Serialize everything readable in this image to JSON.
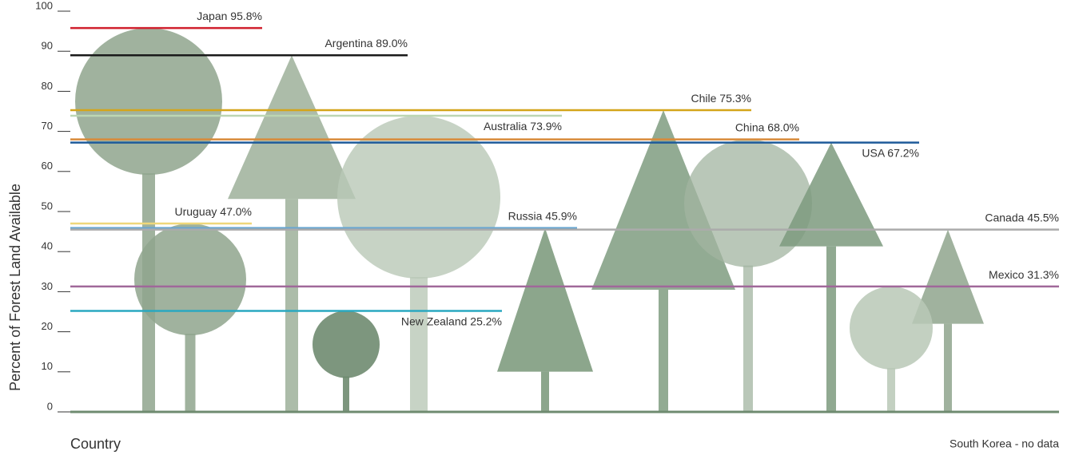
{
  "chart_data": {
    "type": "line-markers",
    "x_label": "Country",
    "y_label": "Percent of Forest Land Available",
    "note": "South Korea - no data",
    "ylim": [
      0,
      100
    ],
    "yticks": [
      0,
      10,
      20,
      30,
      40,
      50,
      60,
      70,
      80,
      90,
      100
    ],
    "series": [
      {
        "name": "Japan",
        "color": "#d0202e",
        "values": [
          95.8
        ],
        "value_labels": [
          "95.8%"
        ]
      },
      {
        "name": "Argentina",
        "color": "#1a1a1a",
        "values": [
          89.0
        ],
        "value_labels": [
          "89.0%"
        ]
      },
      {
        "name": "Chile",
        "color": "#d4a51a",
        "values": [
          75.3
        ],
        "value_labels": [
          "75.3%"
        ]
      },
      {
        "name": "Australia",
        "color": "#bcd6b2",
        "values": [
          73.9
        ],
        "value_labels": [
          "73.9%"
        ]
      },
      {
        "name": "China",
        "color": "#d88a3a",
        "values": [
          68.0
        ],
        "value_labels": [
          "68.0%"
        ]
      },
      {
        "name": "USA",
        "color": "#1f5b9a",
        "values": [
          67.2
        ],
        "value_labels": [
          "67.2%"
        ]
      },
      {
        "name": "Uruguay",
        "color": "#efd77a",
        "values": [
          47.0
        ],
        "value_labels": [
          "47.0%"
        ]
      },
      {
        "name": "Russia",
        "color": "#6aa6d0",
        "values": [
          45.9
        ],
        "value_labels": [
          "45.9%"
        ]
      },
      {
        "name": "Canada",
        "color": "#ababab",
        "values": [
          45.5
        ],
        "value_labels": [
          "45.5%"
        ]
      },
      {
        "name": "Mexico",
        "color": "#a0689a",
        "values": [
          31.3
        ],
        "value_labels": [
          "31.3%"
        ]
      },
      {
        "name": "New Zealand",
        "color": "#2aa8c0",
        "values": [
          25.2
        ],
        "value_labels": [
          "25.2%"
        ]
      }
    ]
  }
}
